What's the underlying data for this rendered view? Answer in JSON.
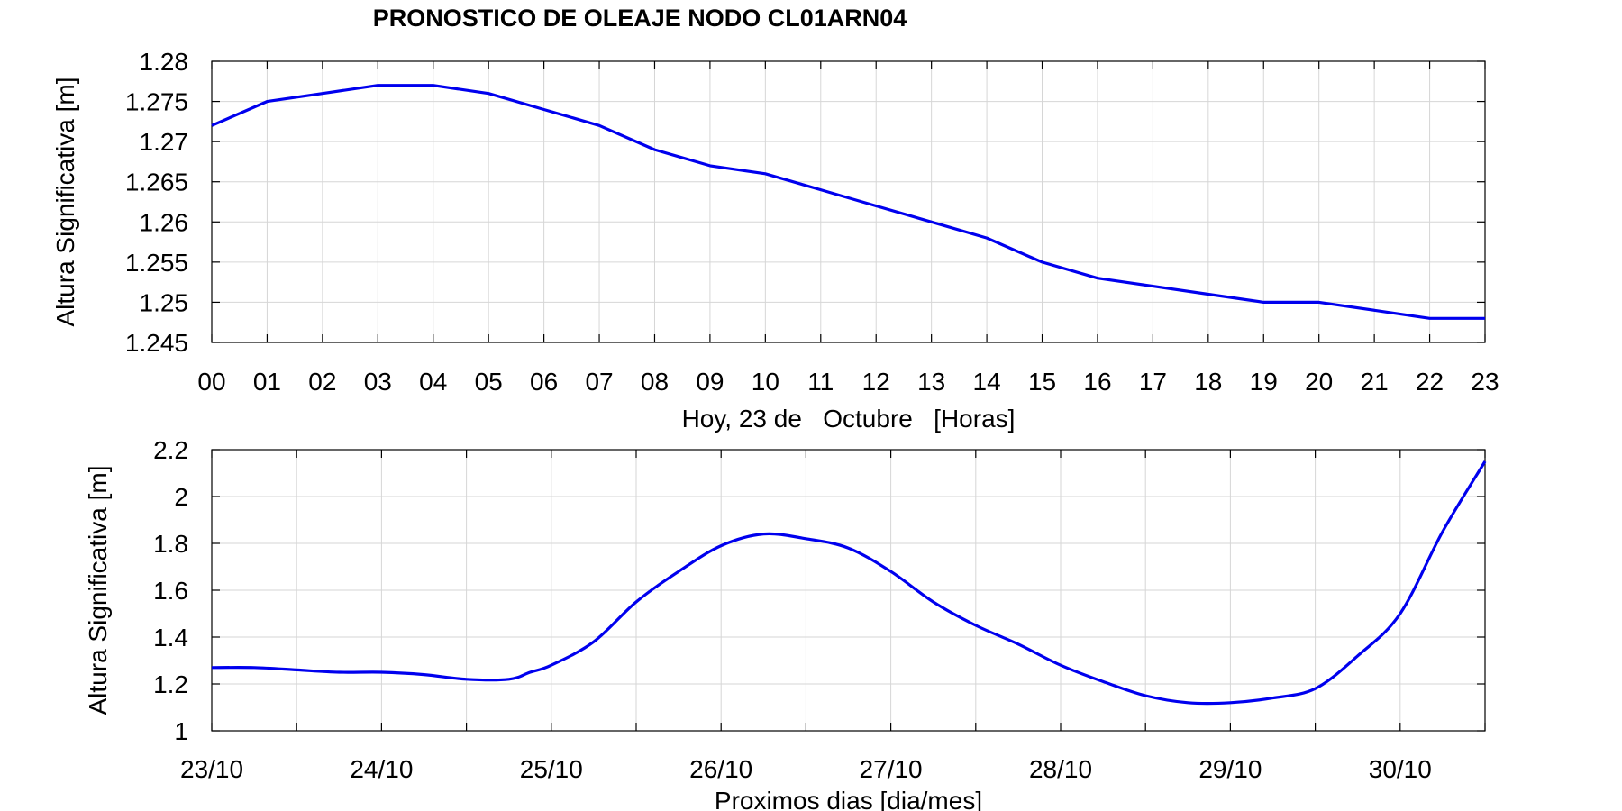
{
  "title": "PRONOSTICO DE OLEAJE NODO CL01ARN04",
  "chart_data": [
    {
      "type": "line",
      "xlabel": "Hoy, 23 de   Octubre   [Horas]",
      "ylabel": "Altura Significativa [m]",
      "ylim": [
        1.245,
        1.28
      ],
      "yticks": [
        1.245,
        1.25,
        1.255,
        1.26,
        1.265,
        1.27,
        1.275,
        1.28
      ],
      "ytick_labels": [
        "1.245",
        "1.25",
        "1.255",
        "1.26",
        "1.265",
        "1.27",
        "1.275",
        "1.28"
      ],
      "xlim": [
        0,
        23
      ],
      "xtick_labels": [
        "00",
        "01",
        "02",
        "03",
        "04",
        "05",
        "06",
        "07",
        "08",
        "09",
        "10",
        "11",
        "12",
        "13",
        "14",
        "15",
        "16",
        "17",
        "18",
        "19",
        "20",
        "21",
        "22",
        "23"
      ],
      "grid": true,
      "color": "#0000ee",
      "x": [
        0,
        1,
        2,
        3,
        4,
        5,
        6,
        7,
        8,
        9,
        10,
        11,
        12,
        13,
        14,
        15,
        16,
        17,
        18,
        19,
        20,
        21,
        22,
        23
      ],
      "values": [
        1.272,
        1.275,
        1.276,
        1.277,
        1.277,
        1.276,
        1.274,
        1.272,
        1.269,
        1.267,
        1.266,
        1.264,
        1.262,
        1.26,
        1.258,
        1.255,
        1.253,
        1.252,
        1.251,
        1.25,
        1.25,
        1.249,
        1.248,
        1.248
      ]
    },
    {
      "type": "line",
      "xlabel": "Proximos dias [dia/mes]",
      "ylabel": "Altura Significativa [m]",
      "ylim": [
        1,
        2.2
      ],
      "yticks": [
        1,
        1.2,
        1.4,
        1.6,
        1.8,
        2,
        2.2
      ],
      "ytick_labels": [
        "1",
        "1.2",
        "1.4",
        "1.6",
        "1.8",
        "2",
        "2.2"
      ],
      "xlim": [
        "23/10 00:00",
        "30/10 12:00"
      ],
      "xtick_labels": [
        "23/10",
        "24/10",
        "25/10",
        "26/10",
        "27/10",
        "28/10",
        "29/10",
        "30/10"
      ],
      "grid": true,
      "color": "#0000ee",
      "x": [
        "23/10 00:00",
        "23/10 06:00",
        "23/10 12:00",
        "23/10 18:00",
        "24/10 00:00",
        "24/10 06:00",
        "24/10 12:00",
        "24/10 18:00",
        "24/10 21:00",
        "25/10 00:00",
        "25/10 06:00",
        "25/10 12:00",
        "25/10 18:00",
        "26/10 00:00",
        "26/10 06:00",
        "26/10 12:00",
        "26/10 18:00",
        "27/10 00:00",
        "27/10 06:00",
        "27/10 12:00",
        "27/10 18:00",
        "28/10 00:00",
        "28/10 06:00",
        "28/10 12:00",
        "28/10 18:00",
        "29/10 00:00",
        "29/10 06:00",
        "29/10 12:00",
        "29/10 18:00",
        "30/10 00:00",
        "30/10 06:00",
        "30/10 12:00"
      ],
      "values": [
        1.27,
        1.27,
        1.26,
        1.25,
        1.25,
        1.24,
        1.22,
        1.22,
        1.25,
        1.28,
        1.38,
        1.55,
        1.68,
        1.79,
        1.84,
        1.82,
        1.78,
        1.68,
        1.55,
        1.45,
        1.37,
        1.28,
        1.21,
        1.15,
        1.12,
        1.12,
        1.14,
        1.18,
        1.32,
        1.5,
        1.85,
        2.15
      ]
    }
  ]
}
